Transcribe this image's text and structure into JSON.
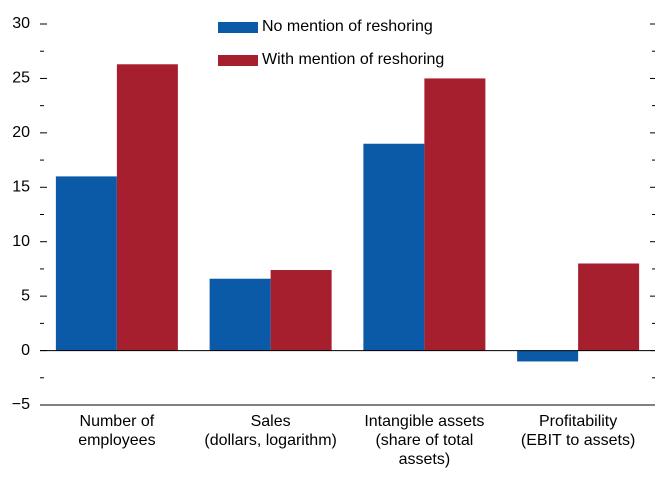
{
  "chart_data": {
    "type": "bar",
    "categories": [
      "Number of\nemployees",
      "Sales\n(dollars, logarithm)",
      "Intangible assets\n(share of total\nassets)",
      "Profitability\n(EBIT to assets)"
    ],
    "series": [
      {
        "name": "No mention of reshoring",
        "color": "#0a5aa8",
        "values": [
          16,
          6.6,
          19,
          -1
        ]
      },
      {
        "name": "With mention of reshoring",
        "color": "#a51f2f",
        "values": [
          26.3,
          7.4,
          25,
          8
        ]
      }
    ],
    "ylim": [
      -5,
      30
    ],
    "yticks": [
      {
        "value": -5,
        "label": "−5"
      },
      0,
      5,
      10,
      15,
      20,
      25,
      30
    ],
    "legend": "top"
  }
}
